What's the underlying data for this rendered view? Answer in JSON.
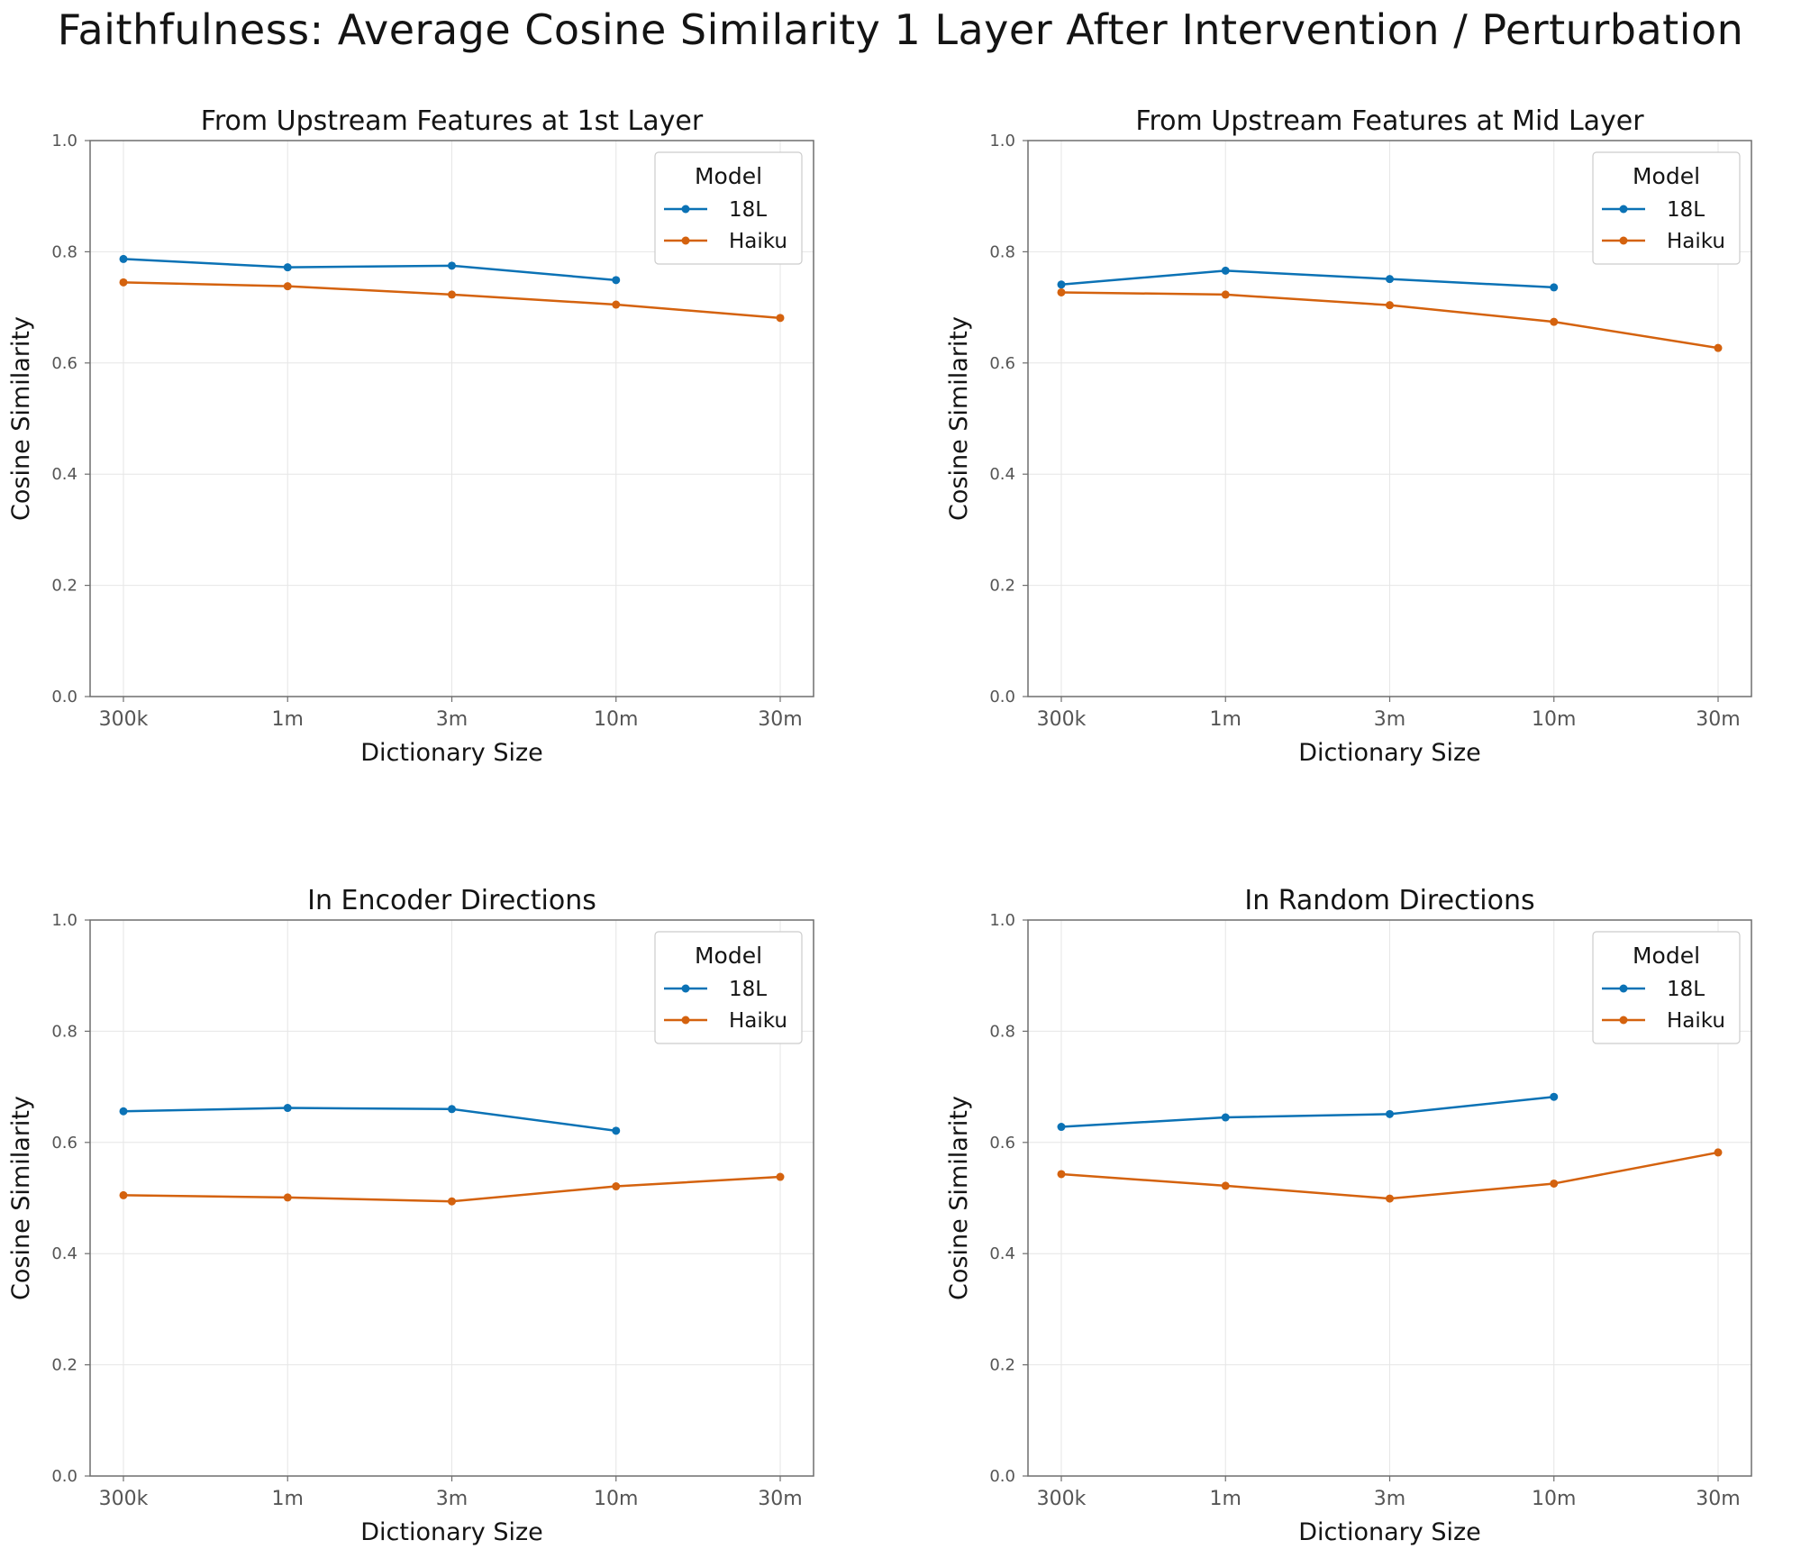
{
  "title": "Faithfulness: Average Cosine Similarity 1 Layer After Intervention / Perturbation",
  "colors": {
    "18L": "#0b72b5",
    "Haiku": "#d4620e",
    "grid": "#e6e6e6",
    "axis": "#6e6e6e"
  },
  "chart_data": [
    {
      "type": "line",
      "title": "From Upstream Features at 1st Layer",
      "xlabel": "Dictionary Size",
      "ylabel": "Cosine Similarity",
      "categories": [
        "300k",
        "1m",
        "3m",
        "10m",
        "30m"
      ],
      "ylim": [
        0,
        1
      ],
      "yticks": [
        "0.0",
        "0.2",
        "0.4",
        "0.6",
        "0.8",
        "1.0"
      ],
      "grid": true,
      "legend": {
        "title": "Model",
        "position": "top-right"
      },
      "series": [
        {
          "name": "18L",
          "values": [
            0.787,
            0.772,
            0.775,
            0.749,
            null
          ]
        },
        {
          "name": "Haiku",
          "values": [
            0.745,
            0.738,
            0.723,
            0.705,
            0.681
          ]
        }
      ]
    },
    {
      "type": "line",
      "title": "From Upstream Features at Mid Layer",
      "xlabel": "Dictionary Size",
      "ylabel": "Cosine Similarity",
      "categories": [
        "300k",
        "1m",
        "3m",
        "10m",
        "30m"
      ],
      "ylim": [
        0,
        1
      ],
      "yticks": [
        "0.0",
        "0.2",
        "0.4",
        "0.6",
        "0.8",
        "1.0"
      ],
      "grid": true,
      "legend": {
        "title": "Model",
        "position": "top-right"
      },
      "series": [
        {
          "name": "18L",
          "values": [
            0.741,
            0.766,
            0.751,
            0.736,
            null
          ]
        },
        {
          "name": "Haiku",
          "values": [
            0.727,
            0.723,
            0.704,
            0.674,
            0.627
          ]
        }
      ]
    },
    {
      "type": "line",
      "title": "In Encoder Directions",
      "xlabel": "Dictionary Size",
      "ylabel": "Cosine Similarity",
      "categories": [
        "300k",
        "1m",
        "3m",
        "10m",
        "30m"
      ],
      "ylim": [
        0,
        1
      ],
      "yticks": [
        "0.0",
        "0.2",
        "0.4",
        "0.6",
        "0.8",
        "1.0"
      ],
      "grid": true,
      "legend": {
        "title": "Model",
        "position": "top-right"
      },
      "series": [
        {
          "name": "18L",
          "values": [
            0.656,
            0.662,
            0.66,
            0.621,
            null
          ]
        },
        {
          "name": "Haiku",
          "values": [
            0.505,
            0.501,
            0.494,
            0.521,
            0.538
          ]
        }
      ]
    },
    {
      "type": "line",
      "title": "In Random Directions",
      "xlabel": "Dictionary Size",
      "ylabel": "Cosine Similarity",
      "categories": [
        "300k",
        "1m",
        "3m",
        "10m",
        "30m"
      ],
      "ylim": [
        0,
        1
      ],
      "yticks": [
        "0.0",
        "0.2",
        "0.4",
        "0.6",
        "0.8",
        "1.0"
      ],
      "grid": true,
      "legend": {
        "title": "Model",
        "position": "top-right"
      },
      "series": [
        {
          "name": "18L",
          "values": [
            0.628,
            0.645,
            0.651,
            0.682,
            null
          ]
        },
        {
          "name": "Haiku",
          "values": [
            0.543,
            0.522,
            0.499,
            0.526,
            0.582
          ]
        }
      ]
    }
  ]
}
